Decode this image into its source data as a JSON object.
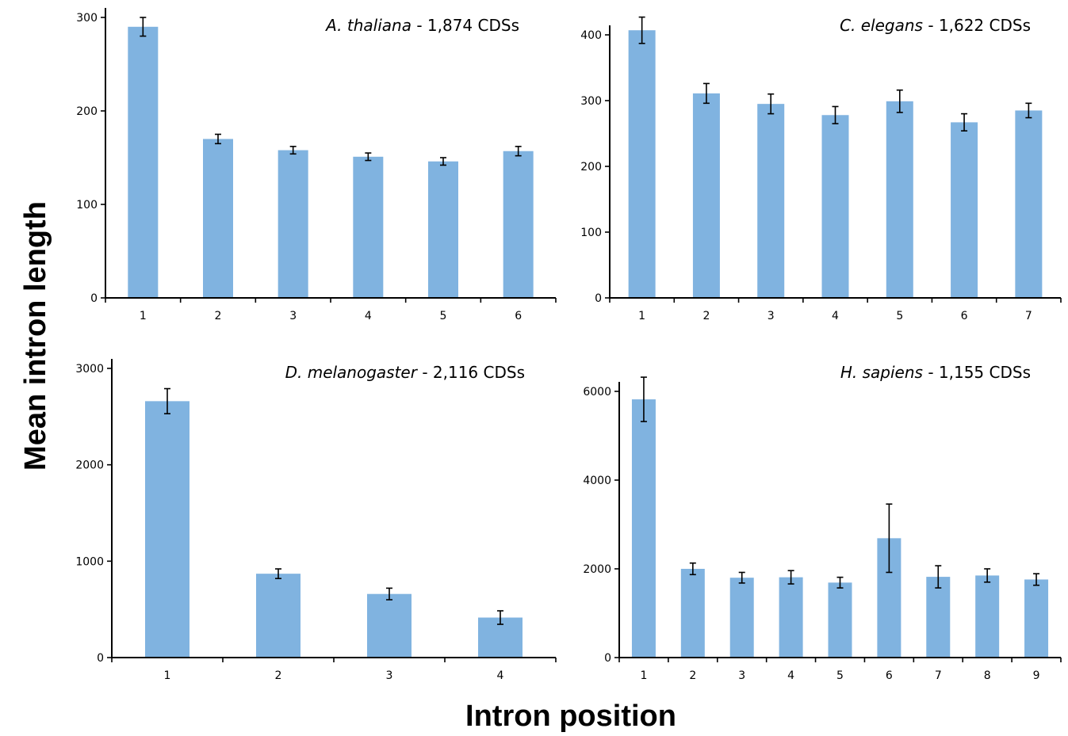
{
  "figure": {
    "ylabel": "Mean intron length",
    "xlabel": "Intron position"
  },
  "chart_data": [
    {
      "type": "bar",
      "title": "A. thaliana",
      "title_suffix": " - 1,874 CDSs",
      "xlabel": "",
      "ylabel": "Mean intron length",
      "ylim": [
        0,
        300
      ],
      "yticks": [
        0,
        100,
        200,
        300
      ],
      "categories": [
        "1",
        "2",
        "3",
        "4",
        "5",
        "6"
      ],
      "values": [
        290,
        170,
        158,
        151,
        146,
        157
      ],
      "errors": [
        10,
        5,
        4,
        4,
        4,
        5
      ],
      "bar_color": "#80b3e0",
      "grid": false
    },
    {
      "type": "bar",
      "title": "C. elegans",
      "title_suffix": " - 1,622 CDSs",
      "xlabel": "",
      "ylabel": "",
      "ylim": [
        0,
        400
      ],
      "yticks": [
        0,
        100,
        200,
        300,
        400
      ],
      "categories": [
        "1",
        "2",
        "3",
        "4",
        "5",
        "6",
        "7"
      ],
      "values": [
        407,
        311,
        295,
        278,
        299,
        267,
        285
      ],
      "errors": [
        20,
        15,
        15,
        13,
        17,
        13,
        11
      ],
      "bar_color": "#80b3e0",
      "grid": false
    },
    {
      "type": "bar",
      "title": "D. melanogaster",
      "title_suffix": " - 2,116 CDSs",
      "xlabel": "Intron position",
      "ylabel": "Mean intron length",
      "ylim": [
        0,
        3000
      ],
      "yticks": [
        0,
        1000,
        2000,
        3000
      ],
      "categories": [
        "1",
        "2",
        "3",
        "4"
      ],
      "values": [
        2660,
        870,
        660,
        415
      ],
      "errors": [
        130,
        50,
        60,
        70
      ],
      "bar_color": "#80b3e0",
      "grid": false
    },
    {
      "type": "bar",
      "title": "H. sapiens",
      "title_suffix": " - 1,155 CDSs",
      "xlabel": "Intron position",
      "ylabel": "",
      "ylim": [
        0,
        6000
      ],
      "yticks": [
        0,
        2000,
        4000,
        6000
      ],
      "categories": [
        "1",
        "2",
        "3",
        "4",
        "5",
        "6",
        "7",
        "8",
        "9"
      ],
      "values": [
        5820,
        2000,
        1800,
        1810,
        1690,
        2690,
        1820,
        1850,
        1760
      ],
      "errors": [
        500,
        130,
        120,
        150,
        120,
        770,
        250,
        150,
        130
      ],
      "bar_color": "#80b3e0",
      "grid": false
    }
  ]
}
